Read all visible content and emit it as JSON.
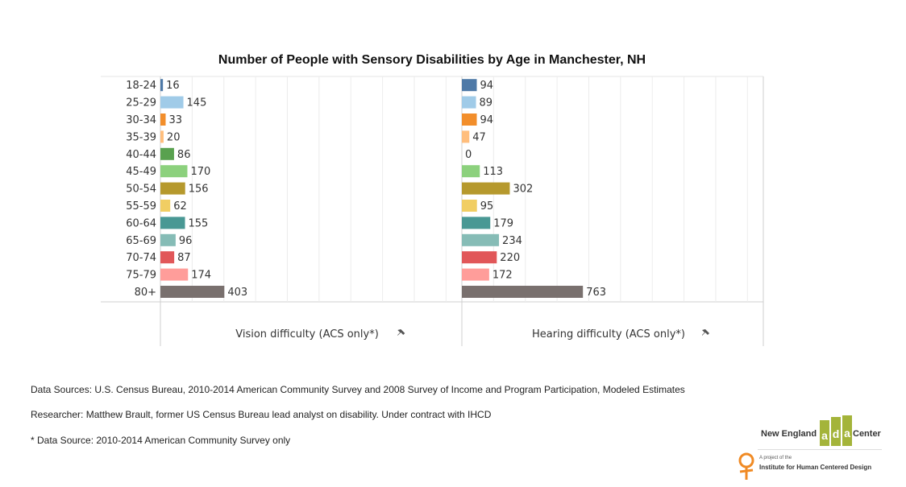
{
  "chart_data": {
    "type": "bar",
    "orientation": "horizontal",
    "title": "Number of People with Sensory Disabilities by Age in Manchester, NH",
    "categories": [
      "18-24",
      "25-29",
      "30-34",
      "35-39",
      "40-44",
      "45-49",
      "50-54",
      "55-59",
      "60-64",
      "65-69",
      "70-74",
      "75-79",
      "80+"
    ],
    "colors": [
      "#4e79a7",
      "#a0cbe8",
      "#f28e2b",
      "#ffbe7d",
      "#59a14f",
      "#8cd17d",
      "#b6992d",
      "#f1ce63",
      "#499894",
      "#86bcb6",
      "#e15759",
      "#ff9d9a",
      "#79706e"
    ],
    "panels": [
      {
        "name": "Vision difficulty (ACS only*)",
        "values": [
          16,
          145,
          33,
          20,
          86,
          170,
          156,
          62,
          155,
          96,
          87,
          174,
          403
        ]
      },
      {
        "name": "Hearing difficulty (ACS only*)",
        "values": [
          94,
          89,
          94,
          47,
          0,
          113,
          302,
          95,
          179,
          234,
          220,
          172,
          763
        ]
      }
    ],
    "x_max": 1900,
    "grid": true,
    "legend": "none",
    "pin_icon": "pushpin-icon"
  },
  "footer": {
    "sources": "Data Sources: U.S. Census Bureau, 2010-2014 American Community Survey and 2008 Survey of Income and Program Participation, Modeled Estimates",
    "researcher": "Researcher: Matthew Brault, former US Census Bureau lead analyst on disability. Under contract with IHCD",
    "note": "* Data Source: 2010-2014 American Community Survey only"
  },
  "logo": {
    "name_left": "New England",
    "mark": "ADA",
    "name_right": "Center",
    "project_of": "A project of the",
    "institute": "Institute for Human Centered Design",
    "mark_color": "#a4b43a",
    "figure_color": "#f08a24"
  }
}
